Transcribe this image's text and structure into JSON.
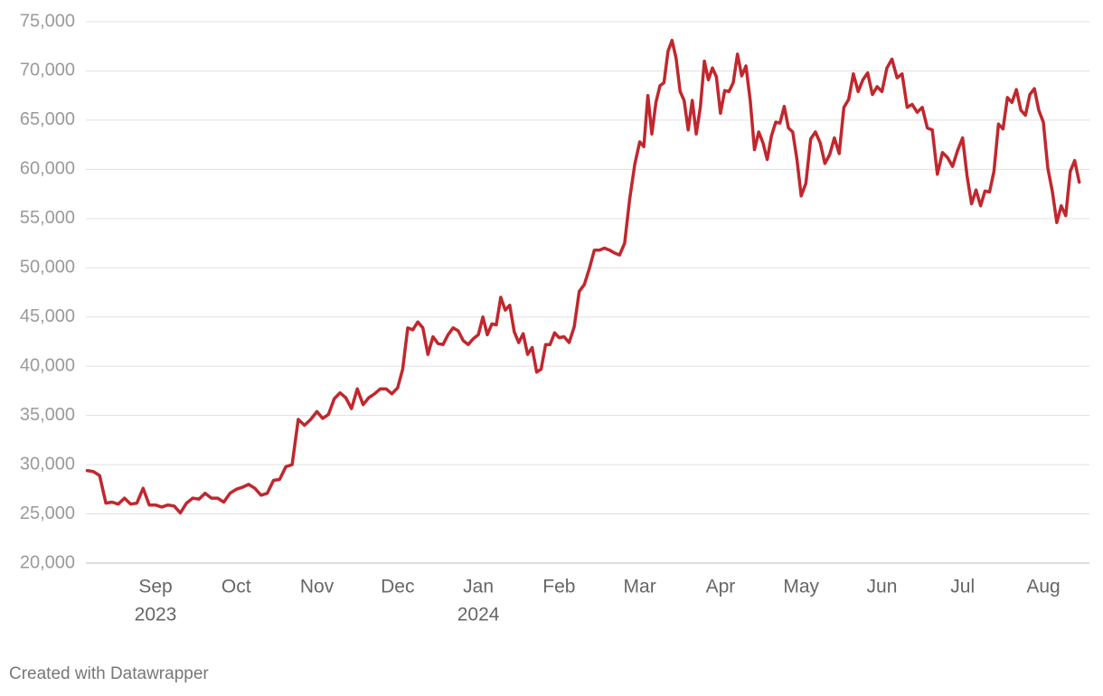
{
  "chart_data": {
    "type": "line",
    "footer": "Created with Datawrapper",
    "categories": [
      null,
      null,
      null,
      null,
      null,
      null,
      null,
      null,
      null,
      null,
      null,
      "Sep",
      null,
      null,
      null,
      null,
      null,
      null,
      null,
      null,
      null,
      null,
      null,
      null,
      "Oct",
      null,
      null,
      null,
      null,
      null,
      null,
      null,
      null,
      null,
      null,
      null,
      null,
      "Nov",
      null,
      null,
      null,
      null,
      null,
      null,
      null,
      null,
      null,
      null,
      null,
      null,
      null,
      "Dec",
      null,
      null,
      null,
      null,
      null,
      null,
      null,
      null,
      null,
      null,
      null,
      null,
      null,
      null,
      null,
      "Jan",
      null,
      null,
      null,
      null,
      null,
      null,
      null,
      null,
      null,
      null,
      null,
      null,
      null,
      null,
      null,
      null,
      null,
      "Feb",
      null,
      null,
      null,
      null,
      null,
      null,
      null,
      null,
      null,
      null,
      null,
      null,
      null,
      null,
      null,
      "Mar",
      null,
      null,
      null,
      null,
      null,
      null,
      null,
      null,
      null,
      null,
      null,
      null,
      null,
      null,
      null,
      null,
      null,
      null,
      null,
      "Apr",
      null,
      null,
      null,
      null,
      null,
      null,
      null,
      null,
      null,
      null,
      null,
      null,
      null,
      null,
      null,
      null,
      null,
      null,
      "May",
      null,
      null,
      null,
      null,
      null,
      null,
      null,
      null,
      null,
      null,
      null,
      null,
      null,
      null,
      null,
      null,
      "Jun",
      null,
      null,
      null,
      null,
      null,
      null,
      null,
      null,
      null,
      null,
      null,
      null,
      null,
      null,
      null,
      "Jul",
      null,
      null,
      null,
      null,
      null,
      null,
      null,
      null,
      null,
      null,
      null,
      null,
      null,
      null,
      null,
      null,
      null,
      "Aug",
      null,
      null,
      null,
      null,
      null,
      null,
      null,
      null
    ],
    "x_sublabels": [
      null,
      null,
      null,
      null,
      null,
      null,
      null,
      null,
      null,
      null,
      null,
      "2023",
      null,
      null,
      null,
      null,
      null,
      null,
      null,
      null,
      null,
      null,
      null,
      null,
      null,
      null,
      null,
      null,
      null,
      null,
      null,
      null,
      null,
      null,
      null,
      null,
      null,
      null,
      null,
      null,
      null,
      null,
      null,
      null,
      null,
      null,
      null,
      null,
      null,
      null,
      null,
      null,
      null,
      null,
      null,
      null,
      null,
      null,
      null,
      null,
      null,
      null,
      null,
      null,
      null,
      null,
      null,
      "2024",
      null,
      null,
      null,
      null,
      null,
      null,
      null,
      null,
      null,
      null,
      null,
      null,
      null,
      null,
      null,
      null,
      null,
      null,
      null,
      null,
      null,
      null,
      null,
      null,
      null,
      null,
      null,
      null,
      null,
      null,
      null,
      null,
      null,
      null,
      null,
      null,
      null,
      null,
      null,
      null,
      null,
      null,
      null,
      null,
      null,
      null,
      null,
      null,
      null,
      null,
      null,
      null,
      null,
      null,
      null,
      null,
      null,
      null,
      null,
      null,
      null,
      null,
      null,
      null,
      null,
      null,
      null,
      null,
      null,
      null,
      null,
      null,
      null,
      null,
      null,
      null,
      null,
      null,
      null,
      null,
      null,
      null,
      null,
      null,
      null,
      null,
      null,
      null,
      null,
      null,
      null,
      null,
      null,
      null,
      null,
      null,
      null,
      null,
      null,
      null,
      null,
      null,
      null,
      null,
      null,
      null,
      null,
      null,
      null,
      null,
      null,
      null,
      null,
      null,
      null,
      null,
      null,
      null,
      null,
      null,
      null,
      null,
      null,
      null,
      null,
      null,
      null,
      null,
      null,
      null,
      null,
      null
    ],
    "series": [
      {
        "color": "#c1272d",
        "values": [
          29400,
          29300,
          28900,
          26100,
          26200,
          26000,
          26600,
          26000,
          26100,
          27600,
          25900,
          25900,
          25700,
          25900,
          25800,
          25100,
          26100,
          26600,
          26500,
          27100,
          26600,
          26600,
          26200,
          27100,
          27500,
          27700,
          28000,
          27600,
          26900,
          27100,
          28400,
          28500,
          29800,
          30000,
          34600,
          34000,
          34600,
          35400,
          34700,
          35100,
          36700,
          37300,
          36800,
          35700,
          37700,
          36100,
          36800,
          37200,
          37700,
          37700,
          37200,
          37800,
          39700,
          43900,
          43700,
          44500,
          43900,
          41200,
          43000,
          42300,
          42200,
          43200,
          43900,
          43600,
          42600,
          42200,
          42800,
          43200,
          45000,
          43200,
          44300,
          44200,
          47000,
          45700,
          46200,
          43500,
          42400,
          43300,
          41200,
          41900,
          39400,
          39700,
          42200,
          42200,
          43400,
          42900,
          43000,
          42400,
          44000,
          47600,
          48300,
          49900,
          51800,
          51800,
          52000,
          51800,
          51500,
          51300,
          52500,
          57000,
          60500,
          62800,
          62300,
          67500,
          63600,
          66800,
          68500,
          68800,
          72000,
          73100,
          71300,
          67900,
          67000,
          64000,
          67000,
          63600,
          66300,
          71000,
          69100,
          70300,
          69400,
          65700,
          68000,
          67900,
          68800,
          71700,
          69500,
          70500,
          67000,
          62000,
          63800,
          62700,
          61000,
          63400,
          64800,
          64700,
          66400,
          64200,
          63800,
          61000,
          57300,
          58600,
          63100,
          63800,
          62700,
          60600,
          61500,
          63200,
          61600,
          66300,
          67100,
          69700,
          67900,
          69100,
          69800,
          67600,
          68400,
          67900,
          70300,
          71200,
          69300,
          69700,
          66300,
          66600,
          65800,
          66300,
          64200,
          64000,
          59500,
          61700,
          61200,
          60300,
          61900,
          63200,
          59300,
          56500,
          57900,
          56300,
          57800,
          57700,
          59800,
          64600,
          64100,
          67300,
          66800,
          68100,
          66000,
          65500,
          67600,
          68200,
          66000,
          64800,
          60100,
          57800,
          54600,
          56300,
          55300,
          59800,
          60900,
          58700
        ]
      }
    ],
    "ylim": [
      20000,
      75000
    ],
    "yticks": [
      {
        "value": 20000,
        "label": "20,000"
      },
      {
        "value": 25000,
        "label": "25,000"
      },
      {
        "value": 30000,
        "label": "30,000"
      },
      {
        "value": 35000,
        "label": "35,000"
      },
      {
        "value": 40000,
        "label": "40,000"
      },
      {
        "value": 45000,
        "label": "45,000"
      },
      {
        "value": 50000,
        "label": "50,000"
      },
      {
        "value": 55000,
        "label": "55,000"
      },
      {
        "value": 60000,
        "label": "60,000"
      },
      {
        "value": 65000,
        "label": "65,000"
      },
      {
        "value": 70000,
        "label": "70,000"
      },
      {
        "value": 75000,
        "label": "75,000"
      }
    ],
    "grid": true
  }
}
